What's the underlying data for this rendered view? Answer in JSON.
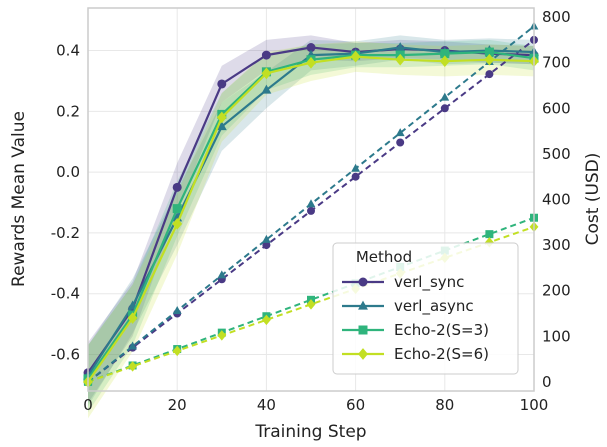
{
  "chart_data": {
    "type": "line",
    "xlabel": "Training Step",
    "ylabel_left": "Rewards Mean Value",
    "ylabel_right": "Cost (USD)",
    "xlim": [
      0,
      100
    ],
    "ylim_left": [
      -0.72,
      0.54
    ],
    "ylim_right": [
      -20,
      820
    ],
    "x_ticks": [
      "0",
      "20",
      "40",
      "60",
      "80",
      "100"
    ],
    "y_ticks_left": [
      "-0.6",
      "-0.4",
      "-0.2",
      "0.0",
      "0.2",
      "0.4"
    ],
    "y_ticks_right": [
      "0",
      "100",
      "200",
      "300",
      "400",
      "500",
      "600",
      "700",
      "800"
    ],
    "grid": true,
    "legend": {
      "title": "Method",
      "placement": "lower-right",
      "entries": [
        "verl_sync",
        "verl_async",
        "Echo-2(S=3)",
        "Echo-2(S=6)"
      ]
    },
    "series": [
      {
        "name": "verl_sync",
        "color": "#4a3a85",
        "marker": "circle",
        "reward": {
          "x": [
            0,
            10,
            20,
            30,
            40,
            50,
            60,
            70,
            80,
            90,
            100
          ],
          "y": [
            -0.66,
            -0.45,
            -0.05,
            0.29,
            0.385,
            0.41,
            0.395,
            0.405,
            0.4,
            0.39,
            0.385
          ],
          "band": [
            0.1,
            0.09,
            0.08,
            0.06,
            0.05,
            0.04,
            0.03,
            0.03,
            0.03,
            0.03,
            0.03
          ]
        },
        "cost": {
          "x": [
            0,
            10,
            20,
            30,
            40,
            50,
            60,
            70,
            80,
            90,
            100
          ],
          "y": [
            0,
            75,
            150,
            225,
            300,
            375,
            450,
            525,
            600,
            675,
            750
          ]
        }
      },
      {
        "name": "verl_async",
        "color": "#2d7a8c",
        "marker": "triangle",
        "reward": {
          "x": [
            0,
            10,
            20,
            30,
            40,
            50,
            60,
            70,
            80,
            90,
            100
          ],
          "y": [
            -0.67,
            -0.44,
            -0.15,
            0.15,
            0.27,
            0.385,
            0.39,
            0.41,
            0.395,
            0.4,
            0.395
          ],
          "band": [
            0.1,
            0.09,
            0.09,
            0.08,
            0.06,
            0.05,
            0.04,
            0.04,
            0.04,
            0.04,
            0.04
          ]
        },
        "cost": {
          "x": [
            0,
            10,
            20,
            30,
            40,
            50,
            60,
            70,
            80,
            90,
            100
          ],
          "y": [
            0,
            78,
            156,
            234,
            312,
            390,
            468,
            546,
            624,
            702,
            780
          ]
        }
      },
      {
        "name": "Echo-2(S=3)",
        "color": "#2fb47c",
        "marker": "square",
        "reward": {
          "x": [
            0,
            10,
            20,
            30,
            40,
            50,
            60,
            70,
            80,
            90,
            100
          ],
          "y": [
            -0.68,
            -0.47,
            -0.12,
            0.19,
            0.33,
            0.37,
            0.385,
            0.385,
            0.39,
            0.395,
            0.375
          ],
          "band": [
            0.11,
            0.1,
            0.09,
            0.07,
            0.06,
            0.05,
            0.04,
            0.04,
            0.04,
            0.04,
            0.04
          ]
        },
        "cost": {
          "x": [
            0,
            10,
            20,
            30,
            40,
            50,
            60,
            70,
            80,
            90,
            100
          ],
          "y": [
            0,
            36,
            72,
            108,
            144,
            180,
            216,
            252,
            288,
            324,
            360
          ]
        }
      },
      {
        "name": "Echo-2(S=6)",
        "color": "#c2df23",
        "marker": "diamond",
        "reward": {
          "x": [
            0,
            10,
            20,
            30,
            40,
            50,
            60,
            70,
            80,
            90,
            100
          ],
          "y": [
            -0.69,
            -0.48,
            -0.17,
            0.18,
            0.325,
            0.36,
            0.38,
            0.37,
            0.365,
            0.37,
            0.365
          ],
          "band": [
            0.12,
            0.11,
            0.1,
            0.08,
            0.07,
            0.06,
            0.05,
            0.05,
            0.05,
            0.05,
            0.05
          ]
        },
        "cost": {
          "x": [
            0,
            10,
            20,
            30,
            40,
            50,
            60,
            70,
            80,
            90,
            100
          ],
          "y": [
            0,
            34,
            68,
            102,
            136,
            170,
            204,
            238,
            272,
            306,
            340
          ]
        }
      }
    ]
  }
}
